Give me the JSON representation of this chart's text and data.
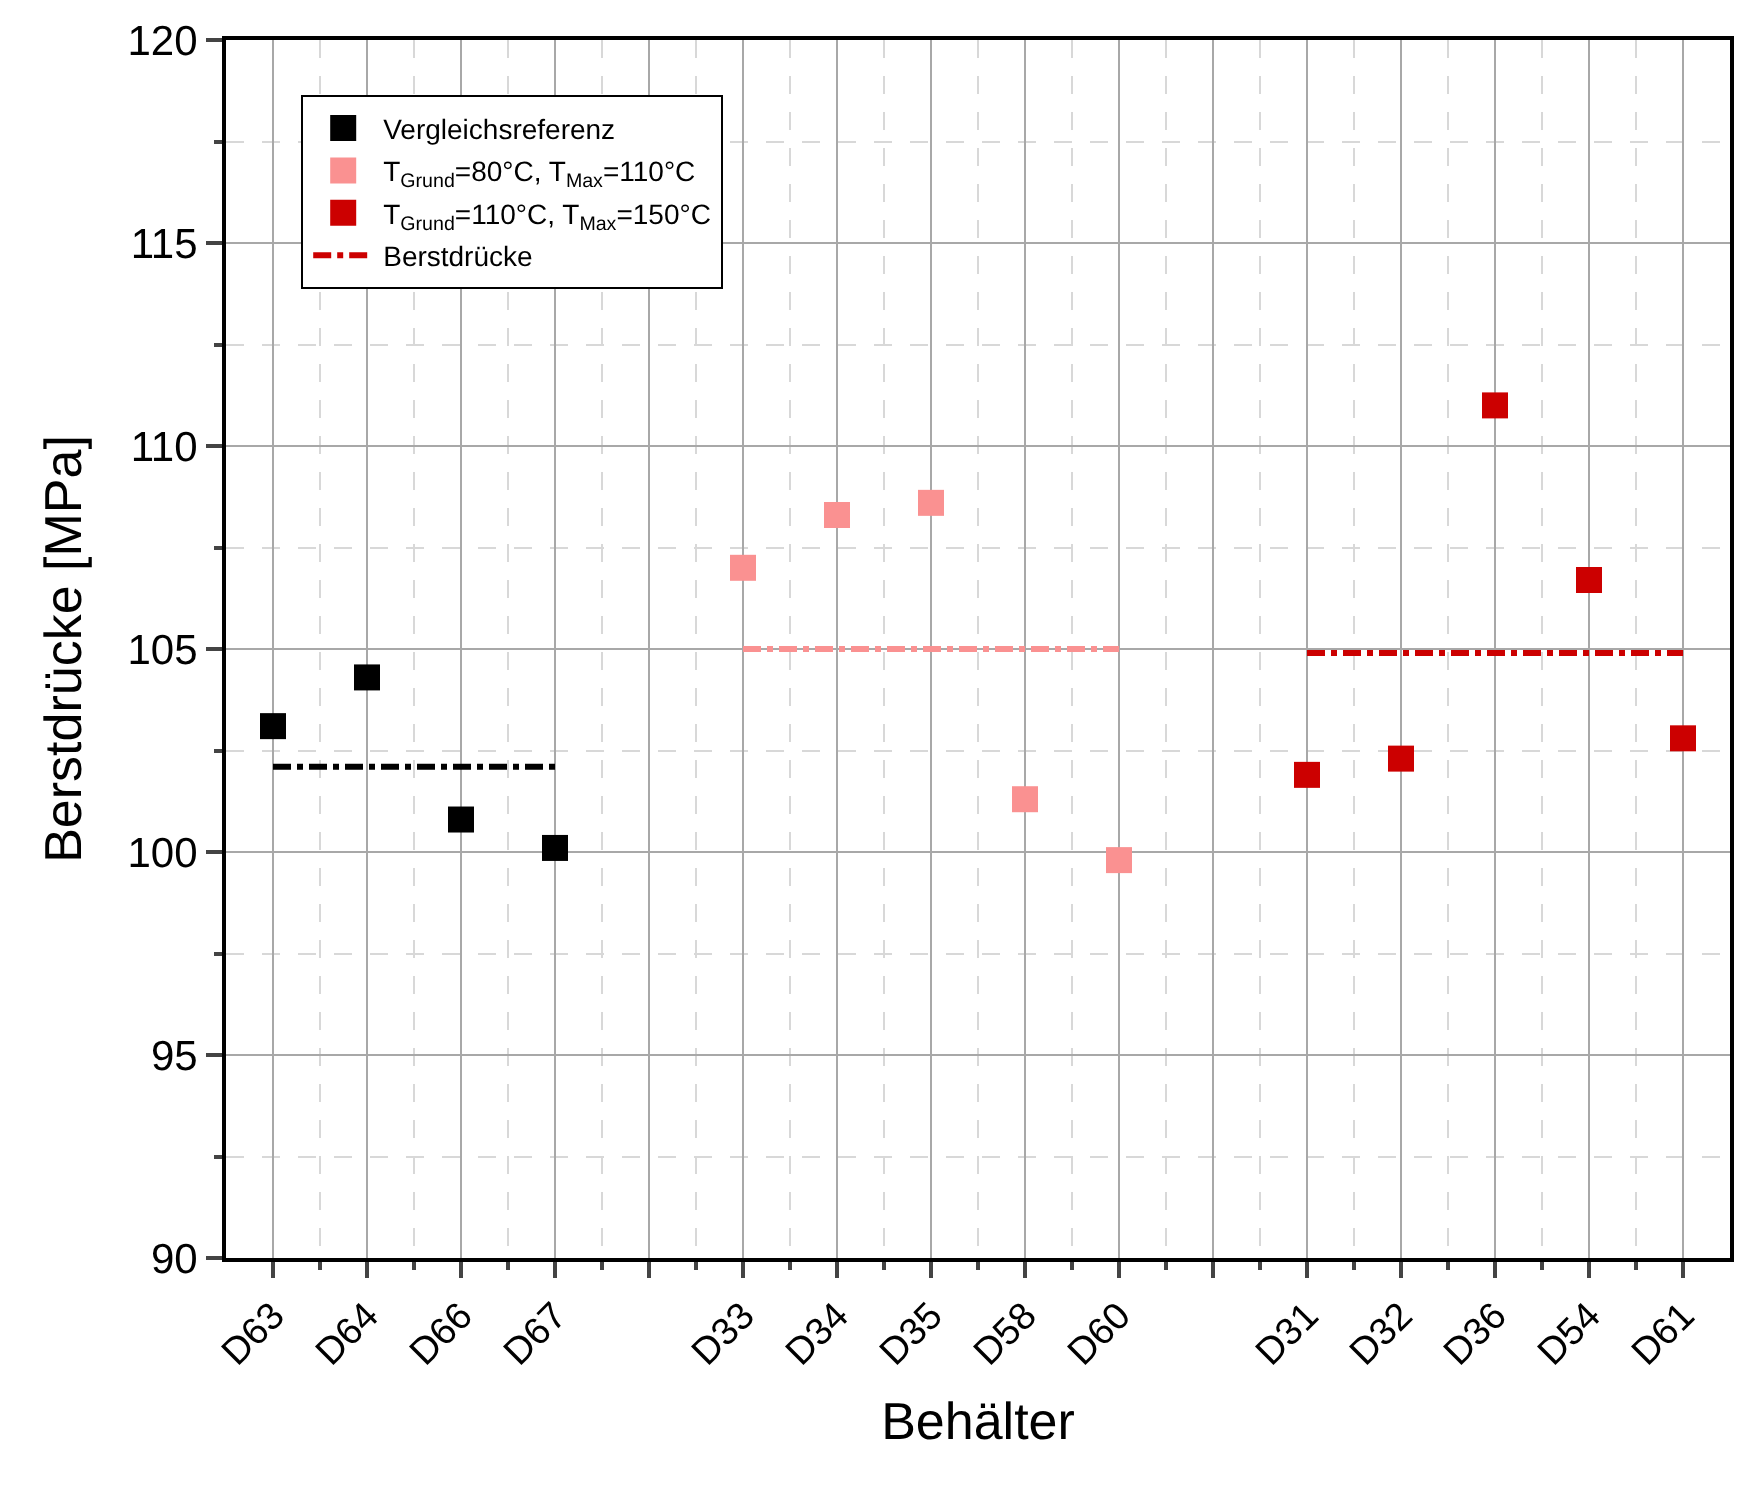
{
  "chart_data": {
    "type": "scatter",
    "xlabel": "Behälter",
    "ylabel": "Berstdrücke [MPa]",
    "categories": [
      "D63",
      "D64",
      "D66",
      "D67",
      null,
      "D33",
      "D34",
      "D35",
      "D58",
      "D60",
      null,
      "D31",
      "D32",
      "D36",
      "D54",
      "D61"
    ],
    "series": [
      {
        "name": "Vergleichsreferenz",
        "color": "#000000",
        "values": [
          103.1,
          104.3,
          100.8,
          100.1,
          null,
          null,
          null,
          null,
          null,
          null,
          null,
          null,
          null,
          null,
          null,
          null
        ]
      },
      {
        "name": "T$_{Grund}$=80°C, T$_{Max}$=110°C",
        "color": "#fa9191",
        "values": [
          null,
          null,
          null,
          null,
          null,
          107.0,
          108.3,
          108.6,
          101.3,
          99.8,
          null,
          null,
          null,
          null,
          null,
          null
        ]
      },
      {
        "name": "T$_{Grund}$=110°C, T$_{Max}$=150°C",
        "color": "#cc0000",
        "values": [
          null,
          null,
          null,
          null,
          null,
          null,
          null,
          null,
          null,
          null,
          null,
          101.9,
          102.3,
          111.0,
          106.7,
          102.8
        ]
      },
      {
        "type": "line",
        "color": "#000000",
        "line_style": "dashdot",
        "marker": "none",
        "values": [
          102.1,
          102.1,
          102.1,
          102.1,
          null,
          null,
          null,
          null,
          null,
          null,
          null,
          null,
          null,
          null,
          null,
          null
        ]
      },
      {
        "type": "line",
        "color": "#fa9191",
        "line_style": "dashdot",
        "marker": "none",
        "values": [
          null,
          null,
          null,
          null,
          null,
          105.0,
          105.0,
          105.0,
          105.0,
          105.0,
          null,
          null,
          null,
          null,
          null,
          null
        ]
      },
      {
        "name": "Berstdrücke",
        "type": "line",
        "color": "#cc0000",
        "line_style": "dashdot",
        "marker": "none",
        "values": [
          null,
          null,
          null,
          null,
          null,
          null,
          null,
          null,
          null,
          null,
          null,
          104.9,
          104.9,
          104.9,
          104.9,
          104.9
        ]
      }
    ],
    "marker": "square",
    "ylim": [
      90,
      120
    ],
    "yticks": [
      90,
      95,
      100,
      105,
      110,
      115,
      120
    ],
    "grid": true,
    "legend": "top left"
  }
}
